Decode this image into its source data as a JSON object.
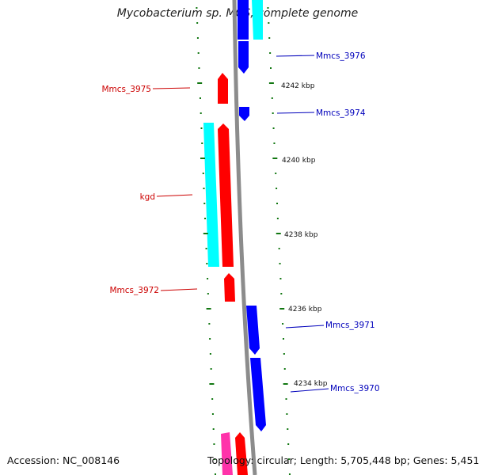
{
  "title": "Mycobacterium sp. MCS, complete genome",
  "footer": {
    "accession": "Accession: NC_008146",
    "topology": "Topology: circular; Length: 5,705,448 bp; Genes: 5,451"
  },
  "colors": {
    "backbone": "#8c8c8c",
    "forward_cds": "#ff0000",
    "reverse_cds": "#0000ff",
    "other_feature": "#00ffff",
    "pink_feature": "#ff33aa",
    "tick": "#117711",
    "forward_label": "#cc0000",
    "reverse_label": "#0000bb",
    "kbp_label": "#111111"
  },
  "kbp_ticks": [
    {
      "label": "4242 kbp"
    },
    {
      "label": "4240 kbp"
    },
    {
      "label": "4238 kbp"
    },
    {
      "label": "4236 kbp"
    },
    {
      "label": "4234 kbp"
    }
  ],
  "gene_labels": {
    "forward": [
      "Mmcs_3975",
      "kgd",
      "Mmcs_3972"
    ],
    "reverse": [
      "Mmcs_3976",
      "Mmcs_3974",
      "Mmcs_3971",
      "Mmcs_3970"
    ]
  }
}
